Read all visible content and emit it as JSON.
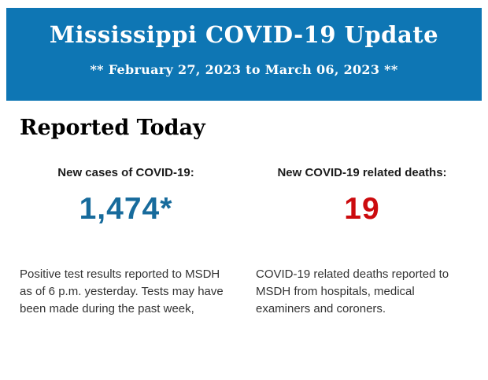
{
  "banner": {
    "title": "Mississippi COVID-19 Update",
    "subtitle": "** February 27, 2023 to March 06, 2023 **",
    "background_color": "#0e76b4",
    "text_color": "#ffffff"
  },
  "main": {
    "heading": "Reported Today",
    "stats": [
      {
        "label": "New cases of COVID-19:",
        "value": "1,474*",
        "value_color": "#176b9c",
        "description": "Positive test results reported to MSDH as of 6 p.m. yesterday. Tests may have been made during the past week,"
      },
      {
        "label": "New COVID-19 related deaths:",
        "value": "19",
        "value_color": "#cc0b0e",
        "description": "COVID-19 related deaths reported to MSDH from hospitals, medical examiners and coroners."
      }
    ]
  }
}
